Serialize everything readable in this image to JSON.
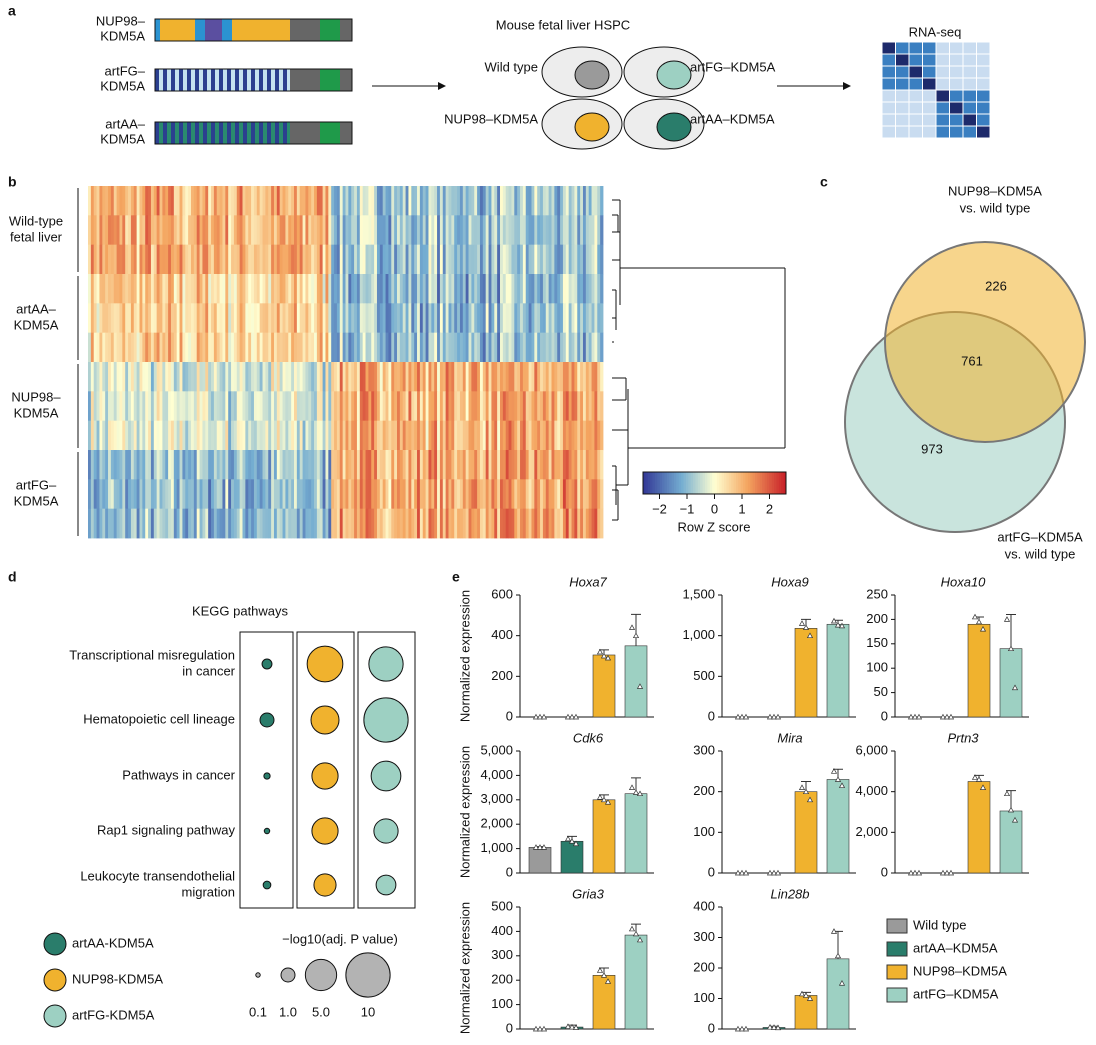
{
  "panel_labels": [
    "a",
    "b",
    "c",
    "d",
    "e"
  ],
  "constructs": [
    {
      "label": [
        "NUP98–",
        "KDM5A"
      ]
    },
    {
      "label": [
        "artFG–",
        "KDM5A"
      ]
    },
    {
      "label": [
        "artAA–",
        "KDM5A"
      ]
    }
  ],
  "cells": {
    "title": "Mouse fetal liver HSPC",
    "labels": [
      "Wild type",
      "artFG–KDM5A",
      "NUP98–KDM5A",
      "artAA–KDM5A"
    ]
  },
  "rnaseq": {
    "title": "RNA-seq"
  },
  "heatmap": {
    "row_groups": [
      [
        "Wild-type",
        "fetal liver"
      ],
      [
        "artAA–",
        "KDM5A"
      ],
      [
        "NUP98–",
        "KDM5A"
      ],
      [
        "artFG–",
        "KDM5A"
      ]
    ],
    "colorbar": {
      "label": "Row Z score",
      "lim": [
        -2.6,
        2.6
      ],
      "ticks": [
        {
          "value": -2,
          "label": "−2"
        },
        {
          "value": -1,
          "label": "−1"
        },
        0,
        1,
        2
      ]
    }
  },
  "venn": {
    "sets": [
      {
        "label": [
          "NUP98–KDM5A",
          "vs. wild type"
        ]
      },
      {
        "label": [
          "artFG–KDM5A",
          "vs. wild type"
        ]
      }
    ],
    "counts": [
      226,
      761,
      973
    ]
  },
  "kegg": {
    "title": "KEGG pathways",
    "pathways": [
      [
        "Transcriptional misregulation",
        "in cancer"
      ],
      [
        "Hematopoietic cell lineage"
      ],
      [
        "Pathways in cancer"
      ],
      [
        "Rap1 signaling pathway"
      ],
      [
        "Leukocyte transendothelial",
        "migration"
      ]
    ],
    "groups": [
      {
        "name": "artAA-KDM5A",
        "color": "#2a7d6b",
        "values": [
          0.5,
          1.0,
          0.2,
          0.15,
          0.3
        ]
      },
      {
        "name": "NUP98-KDM5A",
        "color": "#f0b22e",
        "values": [
          6.5,
          4.0,
          3.5,
          3.5,
          2.5
        ]
      },
      {
        "name": "artFG-KDM5A",
        "color": "#9dd0c2",
        "values": [
          6.0,
          10,
          4.5,
          3.0,
          2.0
        ]
      }
    ],
    "size_title": "−log10(adj. P value)",
    "size_legend": [
      {
        "value": 0.1,
        "label": "0.1"
      },
      {
        "value": 1,
        "label": "1.0"
      },
      {
        "value": 5,
        "label": "5.0"
      },
      10
    ]
  },
  "legend": [
    {
      "name": "Wild type",
      "color": "#9a9a9a"
    },
    {
      "name": "artAA–KDM5A",
      "color": "#2a7d6b"
    },
    {
      "name": "NUP98–KDM5A",
      "color": "#f0b22e"
    },
    {
      "name": "artFG–KDM5A",
      "color": "#9dd0c2"
    }
  ],
  "chart_data": [
    {
      "type": "bar",
      "title": "Hoxa7",
      "ylabel": "Normalized expression",
      "values": [
        0,
        0,
        305,
        350
      ],
      "errors": [
        0,
        0,
        25,
        155
      ],
      "points": [
        [
          0,
          0,
          0
        ],
        [
          0,
          0,
          0
        ],
        [
          320,
          300,
          290
        ],
        [
          440,
          400,
          150
        ]
      ],
      "ylim": [
        0,
        600
      ],
      "yticks": [
        0,
        200,
        400,
        600
      ]
    },
    {
      "type": "bar",
      "title": "Hoxa9",
      "values": [
        0,
        0,
        1090,
        1140
      ],
      "errors": [
        0,
        0,
        110,
        50
      ],
      "points": [
        [
          0,
          0,
          0
        ],
        [
          0,
          0,
          0
        ],
        [
          1150,
          1100,
          1000
        ],
        [
          1180,
          1130,
          1120
        ]
      ],
      "ylim": [
        0,
        1500
      ],
      "yticks": [
        0,
        500,
        {
          "value": 1000,
          "label": "1,000"
        },
        {
          "value": 1500,
          "label": "1,500"
        }
      ]
    },
    {
      "type": "bar",
      "title": "Hoxa10",
      "values": [
        0,
        0,
        190,
        140
      ],
      "errors": [
        0,
        0,
        15,
        70
      ],
      "points": [
        [
          0,
          0,
          0
        ],
        [
          0,
          0,
          0
        ],
        [
          205,
          195,
          180
        ],
        [
          200,
          140,
          60
        ]
      ],
      "ylim": [
        0,
        250
      ],
      "yticks": [
        0,
        50,
        100,
        150,
        200,
        250
      ]
    },
    {
      "type": "bar",
      "title": "Cdk6",
      "ylabel": "Normalized expression",
      "values": [
        1050,
        1300,
        3000,
        3250
      ],
      "errors": [
        30,
        200,
        200,
        650
      ],
      "points": [
        [
          1050,
          1050,
          1050
        ],
        [
          1400,
          1300,
          1200
        ],
        [
          3100,
          3000,
          2900
        ],
        [
          3500,
          3300,
          3250
        ]
      ],
      "ylim": [
        0,
        5000
      ],
      "yticks": [
        0,
        {
          "value": 1000,
          "label": "1,000"
        },
        {
          "value": 2000,
          "label": "2,000"
        },
        {
          "value": 3000,
          "label": "3,000"
        },
        {
          "value": 4000,
          "label": "4,000"
        },
        {
          "value": 5000,
          "label": "5,000"
        }
      ]
    },
    {
      "type": "bar",
      "title": "Mira",
      "values": [
        0,
        0,
        200,
        230
      ],
      "errors": [
        0,
        0,
        25,
        25
      ],
      "points": [
        [
          0,
          0,
          0
        ],
        [
          0,
          0,
          0
        ],
        [
          210,
          200,
          180
        ],
        [
          250,
          230,
          215
        ]
      ],
      "ylim": [
        0,
        300
      ],
      "yticks": [
        0,
        100,
        200,
        300
      ]
    },
    {
      "type": "bar",
      "title": "Prtn3",
      "values": [
        0,
        0,
        4500,
        3050
      ],
      "errors": [
        0,
        0,
        300,
        1000
      ],
      "points": [
        [
          0,
          0,
          0
        ],
        [
          0,
          0,
          0
        ],
        [
          4700,
          4600,
          4200
        ],
        [
          3900,
          3100,
          2600
        ]
      ],
      "ylim": [
        0,
        6000
      ],
      "yticks": [
        0,
        {
          "value": 2000,
          "label": "2,000"
        },
        {
          "value": 4000,
          "label": "4,000"
        },
        {
          "value": 6000,
          "label": "6,000"
        }
      ]
    },
    {
      "type": "bar",
      "title": "Gria3",
      "ylabel": "Normalized expression",
      "values": [
        0,
        8,
        220,
        385
      ],
      "errors": [
        0,
        8,
        30,
        45
      ],
      "points": [
        [
          0,
          0,
          0
        ],
        [
          10,
          8,
          6
        ],
        [
          240,
          220,
          195
        ],
        [
          410,
          390,
          365
        ]
      ],
      "ylim": [
        0,
        500
      ],
      "yticks": [
        0,
        100,
        200,
        300,
        400,
        500
      ]
    },
    {
      "type": "bar",
      "title": "Lin28b",
      "values": [
        0,
        5,
        110,
        230
      ],
      "errors": [
        0,
        4,
        10,
        90
      ],
      "points": [
        [
          0,
          0,
          0
        ],
        [
          6,
          5,
          4
        ],
        [
          115,
          110,
          100
        ],
        [
          320,
          240,
          150
        ]
      ],
      "ylim": [
        0,
        400
      ],
      "yticks": [
        0,
        100,
        200,
        300,
        400
      ]
    }
  ]
}
